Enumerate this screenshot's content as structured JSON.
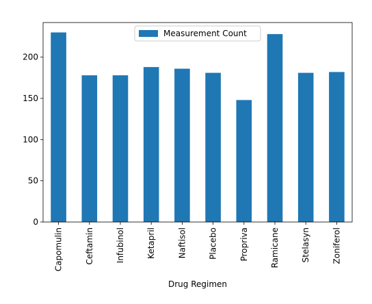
{
  "chart_data": {
    "type": "bar",
    "title": "",
    "xlabel": "Drug Regimen",
    "ylabel": "",
    "categories": [
      "Capomulin",
      "Ceftamin",
      "Infubinol",
      "Ketapril",
      "Naftisol",
      "Placebo",
      "Propriva",
      "Ramicane",
      "Stelasyn",
      "Zoniferol"
    ],
    "series": [
      {
        "name": "Measurement Count",
        "values": [
          230,
          178,
          178,
          188,
          186,
          181,
          148,
          228,
          181,
          182
        ],
        "color": "#1f77b4"
      }
    ],
    "ylim": [
      0,
      242
    ],
    "yticks": [
      0,
      50,
      100,
      150,
      200
    ],
    "grid": false,
    "legend_position": "top-center"
  },
  "colors": {
    "bar": "#1f77b4",
    "axes": "#000000",
    "legend_border": "#cccccc"
  }
}
